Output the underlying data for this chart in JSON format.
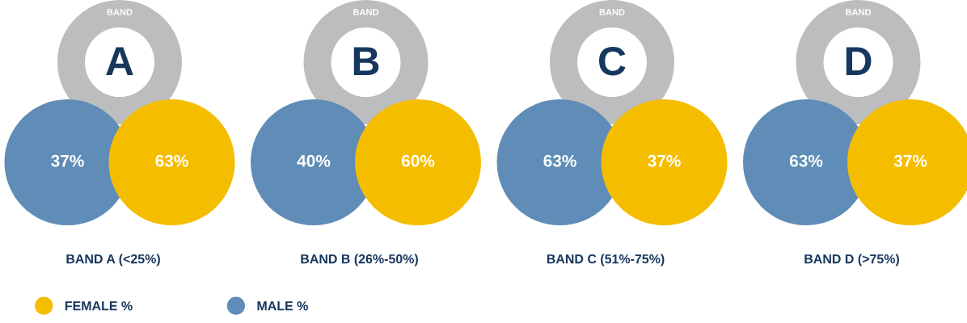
{
  "chart_data": {
    "type": "other",
    "categories": [
      "BAND A (<25%)",
      "BAND B (26%-50%)",
      "BAND C (51%-75%)",
      "BAND D (>75%)"
    ],
    "series": [
      {
        "name": "MALE %",
        "color": "#5f8db7",
        "values": [
          37,
          40,
          63,
          63
        ],
        "value_labels": [
          "37%",
          "40%",
          "63%",
          "63%"
        ]
      },
      {
        "name": "FEMALE %",
        "color": "#f5bd00",
        "values": [
          63,
          60,
          37,
          37
        ],
        "value_labels": [
          "63%",
          "60%",
          "37%",
          "37%"
        ]
      }
    ],
    "annotations": [
      "BAND",
      "A",
      "BAND",
      "B",
      "BAND",
      "C",
      "BAND",
      "D"
    ],
    "legend": "bottom left"
  }
}
